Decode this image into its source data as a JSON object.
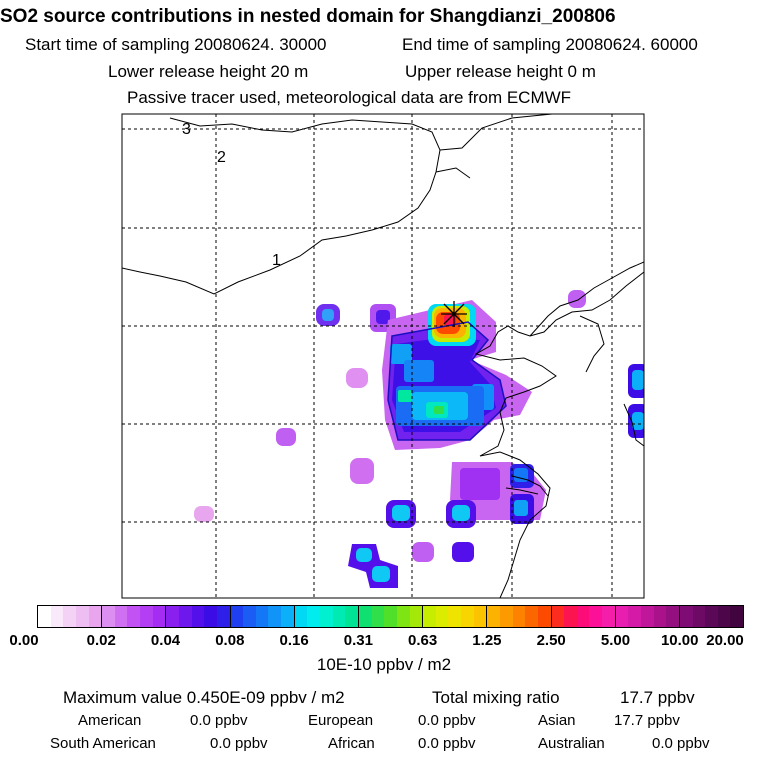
{
  "header": {
    "title": "SO2 source contributions in nested domain for Shangdianzi_200806",
    "start_label": "Start time of sampling 20080624. 30000",
    "end_label": "End time of sampling 20080624. 60000",
    "lower_label": "Lower release height   20 m",
    "upper_label": "Upper release height    0 m",
    "tracer_note": "Passive tracer used, meteorological data are from ECMWF"
  },
  "map": {
    "region_labels": [
      "3",
      "2",
      "1"
    ],
    "receptor_marker": "star-cross"
  },
  "colorbar": {
    "ticks": [
      "0.00",
      "0.02",
      "0.04",
      "0.08",
      "0.16",
      "0.31",
      "0.63",
      "1.25",
      "2.50",
      "5.00",
      "10.00",
      "20.00"
    ],
    "colors": [
      [
        "#ffffff",
        "#fae8fb",
        "#f4d2f6",
        "#eebdf2",
        "#e9a6ef"
      ],
      [
        "#dc8ff0",
        "#cf70f2",
        "#c252f4",
        "#b43ef3",
        "#a52cf2"
      ],
      [
        "#8a20f0",
        "#6f18ee",
        "#5410ea",
        "#3c0ce6",
        "#2e20e8"
      ],
      [
        "#1f40f0",
        "#1a5cf4",
        "#1478f6",
        "#1094f8",
        "#0cb0f8"
      ],
      [
        "#00d8f4",
        "#00ecee",
        "#00f0d0",
        "#00eab4",
        "#00e496"
      ],
      [
        "#10e070",
        "#30e04a",
        "#50e02a",
        "#7ee414",
        "#a4e80a"
      ],
      [
        "#c6ec00",
        "#dcec00",
        "#eee400",
        "#f8d400",
        "#fcc400"
      ],
      [
        "#fcb200",
        "#fc9a00",
        "#fc8200",
        "#fc6600",
        "#fc4a00"
      ],
      [
        "#fc2c1e",
        "#fc1450",
        "#fc0c78",
        "#fc1098",
        "#f41eaa"
      ],
      [
        "#e81eb0",
        "#d41aa6",
        "#c0169a",
        "#aa128c",
        "#941080"
      ],
      [
        "#7e0c74",
        "#6c0a66",
        "#5c0858",
        "#4e064a",
        "#42043e"
      ]
    ],
    "unit": "10E-10 ppbv / m2"
  },
  "stats": {
    "max_label": "Maximum value  0.450E-09 ppbv / m2",
    "total_label": "Total mixing ratio",
    "total_value": "17.7 ppbv",
    "american_label": "American",
    "american_value": "0.0 ppbv",
    "european_label": "European",
    "european_value": "0.0 ppbv",
    "asian_label": "Asian",
    "asian_value": "17.7 ppbv",
    "south_american_label": "South American",
    "south_american_value": "0.0 ppbv",
    "african_label": "African",
    "african_value": "0.0 ppbv",
    "australian_label": "Australian",
    "australian_value": "0.0 ppbv"
  }
}
